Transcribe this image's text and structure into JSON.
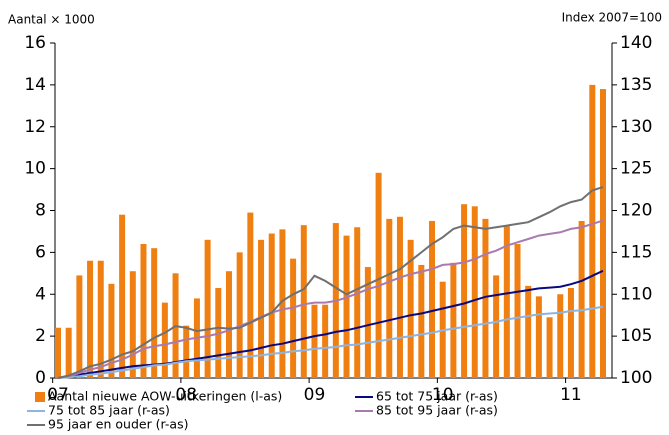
{
  "chart_data": {
    "type": "bar-line",
    "y_label": "Aantal × 1000",
    "y2_label": "Index 2007=100",
    "categories": [
      "07",
      null,
      null,
      null,
      null,
      null,
      null,
      null,
      null,
      null,
      null,
      null,
      "08",
      null,
      null,
      null,
      null,
      null,
      null,
      null,
      null,
      null,
      null,
      null,
      "09",
      null,
      null,
      null,
      null,
      null,
      null,
      null,
      null,
      null,
      null,
      null,
      "10",
      null,
      null,
      null,
      null,
      null,
      null,
      null,
      null,
      null,
      null,
      null,
      "11",
      null,
      null,
      null
    ],
    "ylim": [
      0,
      16
    ],
    "yticks": [
      0,
      2,
      4,
      6,
      8,
      10,
      12,
      14,
      16
    ],
    "y2lim": [
      100,
      140
    ],
    "y2ticks": [
      100,
      105,
      110,
      115,
      120,
      125,
      130,
      135,
      140
    ],
    "series": [
      {
        "name": "Aantal nieuwe AOW-uitkeringen (l-as)",
        "color": "#f07f12",
        "kind": "bar",
        "axis": "y",
        "values": [
          2.4,
          2.4,
          4.9,
          5.6,
          5.6,
          4.5,
          7.8,
          5.1,
          6.4,
          6.2,
          3.6,
          5.0,
          2.5,
          3.8,
          6.6,
          4.3,
          5.1,
          6.0,
          7.9,
          6.6,
          6.9,
          7.1,
          5.7,
          7.3,
          3.5,
          3.5,
          7.4,
          6.8,
          7.2,
          5.3,
          9.8,
          7.6,
          7.7,
          6.6,
          5.4,
          7.5,
          4.6,
          5.5,
          8.3,
          8.2,
          7.6,
          4.9,
          7.3,
          6.4,
          4.4,
          3.9,
          2.9,
          4.0,
          4.3,
          7.5,
          14.0,
          13.8
        ]
      },
      {
        "name": "65 tot 75 jaar (r-as)",
        "color": "#0a0a80",
        "kind": "line",
        "axis": "y2",
        "values": [
          100,
          100.2,
          100.4,
          100.6,
          100.8,
          101,
          101.2,
          101.4,
          101.5,
          101.6,
          101.7,
          101.9,
          102.1,
          102.3,
          102.5,
          102.7,
          102.9,
          103.1,
          103.3,
          103.6,
          103.9,
          104.1,
          104.4,
          104.7,
          105.0,
          105.2,
          105.5,
          105.7,
          106,
          106.3,
          106.6,
          106.9,
          107.2,
          107.5,
          107.7,
          108,
          108.3,
          108.6,
          108.9,
          109.3,
          109.7,
          109.9,
          110.1,
          110.3,
          110.5,
          110.7,
          110.8,
          110.9,
          111.2,
          111.6,
          112.2,
          112.8
        ]
      },
      {
        "name": "75 tot 85 jaar (r-as)",
        "color": "#8db4e2",
        "kind": "line",
        "axis": "y2",
        "values": [
          100,
          100.1,
          100.2,
          100.4,
          100.5,
          100.7,
          100.9,
          101.1,
          101.3,
          101.5,
          101.6,
          101.8,
          102.0,
          102.1,
          102.2,
          102.3,
          102.4,
          102.5,
          102.6,
          102.7,
          102.9,
          103.0,
          103.2,
          103.3,
          103.5,
          103.6,
          103.7,
          103.9,
          104.0,
          104.2,
          104.4,
          104.6,
          104.8,
          105.0,
          105.2,
          105.4,
          105.7,
          105.9,
          106.1,
          106.3,
          106.5,
          106.7,
          107.0,
          107.2,
          107.4,
          107.6,
          107.7,
          107.8,
          108.0,
          108.1,
          108.3,
          108.5
        ]
      },
      {
        "name": "85 tot 95 jaar (r-as)",
        "color": "#a97ab0",
        "kind": "line",
        "axis": "y2",
        "values": [
          100,
          100.2,
          100.6,
          101,
          101.3,
          101.8,
          102.2,
          102.8,
          103.5,
          103.8,
          104.0,
          104.3,
          104.6,
          104.8,
          105.0,
          105.3,
          105.7,
          106.2,
          106.7,
          107.3,
          107.8,
          108.2,
          108.4,
          108.8,
          109.0,
          109.0,
          109.2,
          109.6,
          110.1,
          110.6,
          111.0,
          111.5,
          112.0,
          112.4,
          112.7,
          113.0,
          113.5,
          113.6,
          113.8,
          114.2,
          114.8,
          115.2,
          115.8,
          116.2,
          116.6,
          117.0,
          117.2,
          117.4,
          117.8,
          118.0,
          118.4,
          118.8
        ]
      },
      {
        "name": "95 jaar en ouder (r-as)",
        "color": "#707070",
        "kind": "line",
        "axis": "y2",
        "values": [
          100,
          100.3,
          100.8,
          101.4,
          101.7,
          102.2,
          102.8,
          103.2,
          104.0,
          104.8,
          105.4,
          106.2,
          106.0,
          105.6,
          105.8,
          106.0,
          105.9,
          106.0,
          106.6,
          107.2,
          107.8,
          109.2,
          110.0,
          110.6,
          112.2,
          111.6,
          110.8,
          110.0,
          110.6,
          111.2,
          111.8,
          112.4,
          113.0,
          114.0,
          115.0,
          116.0,
          116.8,
          117.8,
          118.2,
          118.0,
          117.8,
          118.0,
          118.2,
          118.4,
          118.6,
          119.2,
          119.8,
          120.5,
          121.0,
          121.3,
          122.4,
          122.8
        ]
      }
    ]
  }
}
